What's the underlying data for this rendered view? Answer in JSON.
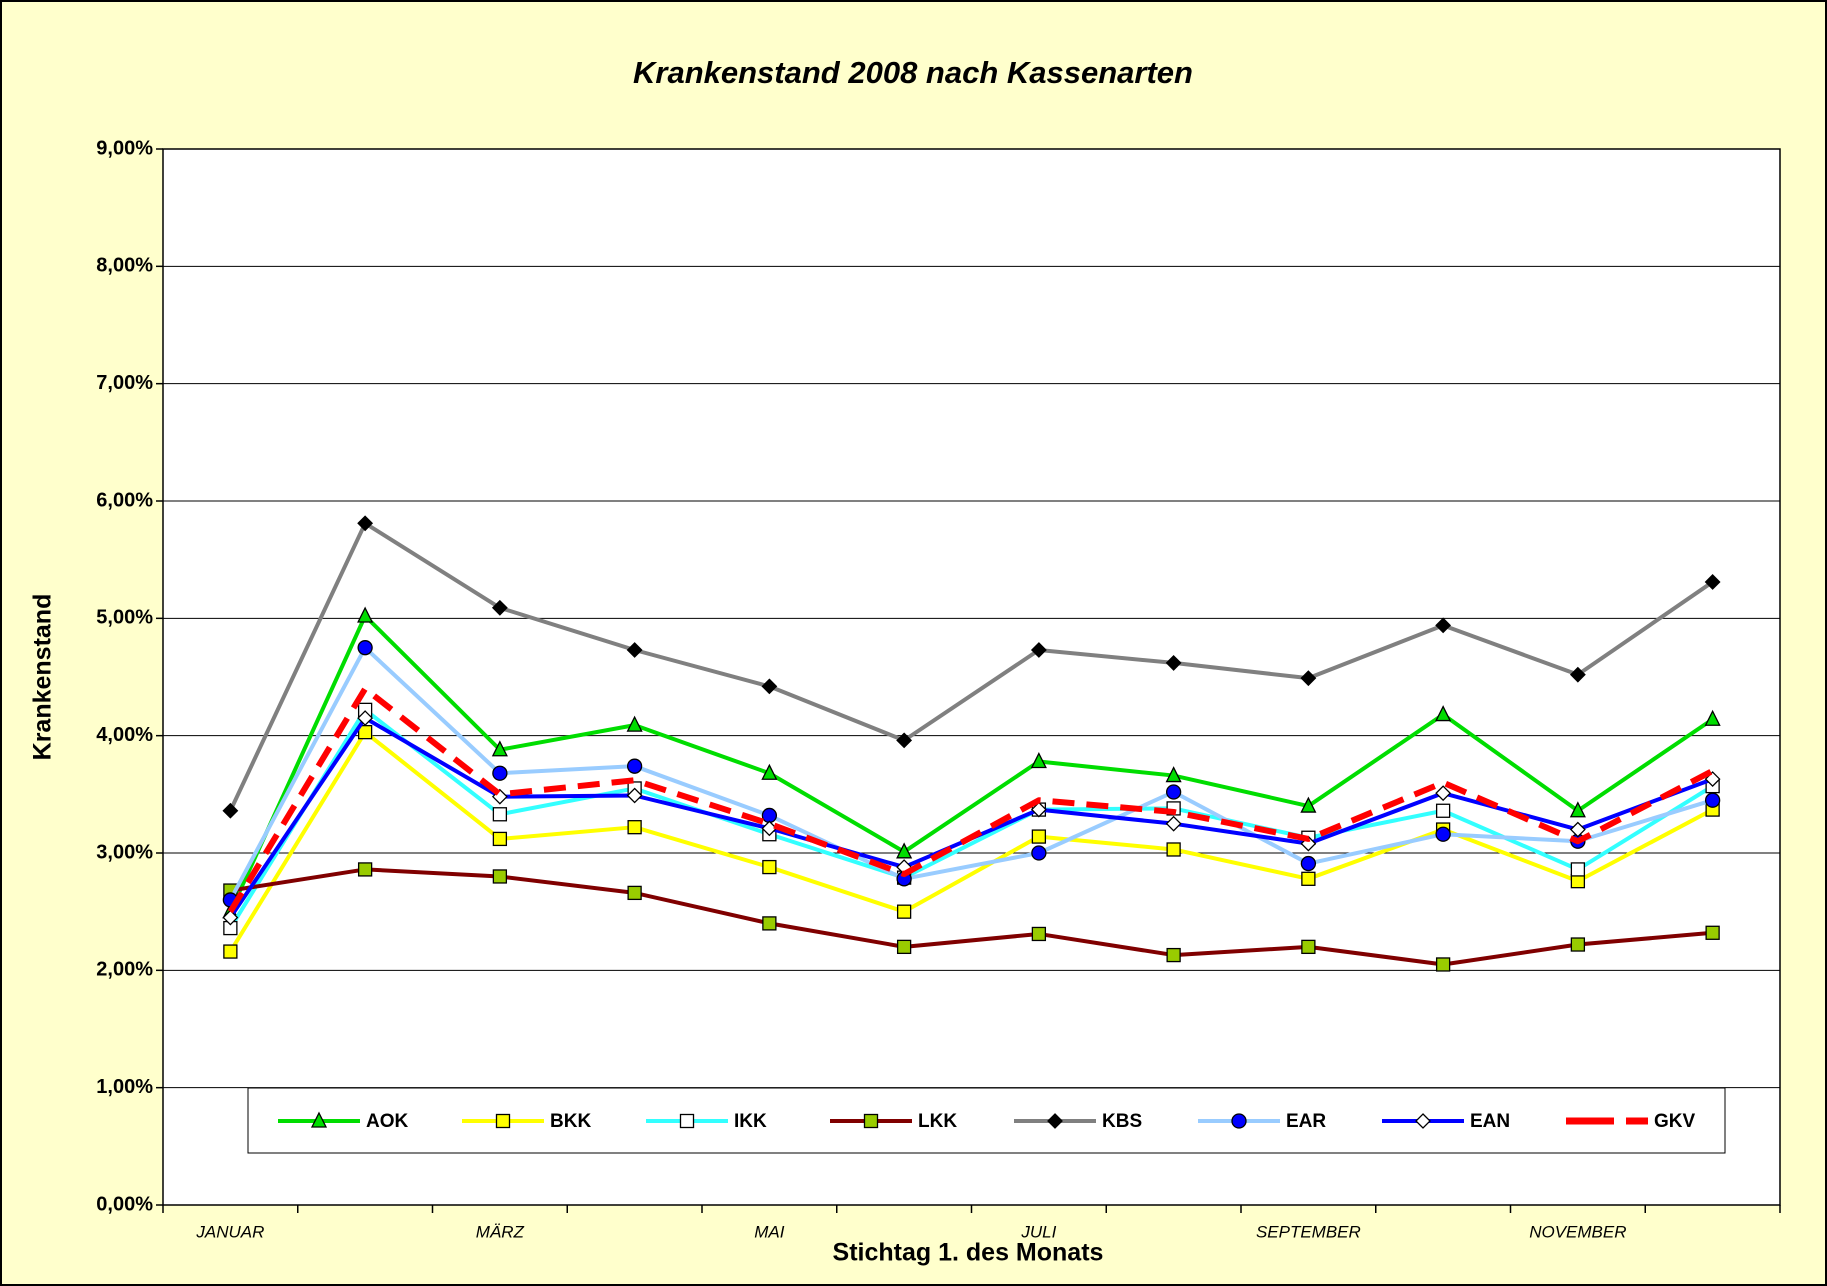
{
  "chart_data": {
    "type": "line",
    "title": "Krankenstand 2008 nach Kassenarten",
    "x_label": "Stichtag 1. des Monats",
    "y_label": "Krankenstand",
    "categories": [
      "JANUAR",
      null,
      "MÄRZ",
      null,
      "MAI",
      null,
      "JULI",
      null,
      "SEPTEMBER",
      null,
      "NOVEMBER",
      null
    ],
    "ylim": [
      0,
      9
    ],
    "yticks": [
      {
        "value": 0,
        "label": "0,00%"
      },
      {
        "value": 1,
        "label": "1,00%"
      },
      {
        "value": 2,
        "label": "2,00%"
      },
      {
        "value": 3,
        "label": "3,00%"
      },
      {
        "value": 4,
        "label": "4,00%"
      },
      {
        "value": 5,
        "label": "5,00%"
      },
      {
        "value": 6,
        "label": "6,00%"
      },
      {
        "value": 7,
        "label": "7,00%"
      },
      {
        "value": 8,
        "label": "8,00%"
      },
      {
        "value": 9,
        "label": "9,00%"
      }
    ],
    "grid": true,
    "legend": "bottom",
    "series": [
      {
        "name": "AOK",
        "color": "#00dd00",
        "marker": "triangle",
        "marker_color": "#00dd00",
        "values": [
          2.5,
          5.02,
          3.88,
          4.09,
          3.68,
          3.01,
          3.78,
          3.66,
          3.4,
          4.18,
          3.36,
          4.14
        ]
      },
      {
        "name": "BKK",
        "color": "#ffff00",
        "marker": "square",
        "marker_color": "#ffff00",
        "values": [
          2.16,
          4.03,
          3.12,
          3.22,
          2.88,
          2.5,
          3.14,
          3.03,
          2.78,
          3.2,
          2.76,
          3.37
        ]
      },
      {
        "name": "IKK",
        "color": "#33ffff",
        "marker": "square",
        "marker_color": "#ffffff",
        "values": [
          2.36,
          4.22,
          3.33,
          3.55,
          3.16,
          2.79,
          3.37,
          3.38,
          3.13,
          3.36,
          2.86,
          3.57
        ]
      },
      {
        "name": "LKK",
        "color": "#800000",
        "marker": "square",
        "marker_color": "#99cc00",
        "values": [
          2.68,
          2.86,
          2.8,
          2.66,
          2.4,
          2.2,
          2.31,
          2.13,
          2.2,
          2.05,
          2.22,
          2.32
        ]
      },
      {
        "name": "KBS",
        "color": "#808080",
        "marker": "diamond",
        "marker_color": "#000000",
        "values": [
          3.36,
          5.81,
          5.09,
          4.73,
          4.42,
          3.96,
          4.73,
          4.62,
          4.49,
          4.94,
          4.52,
          5.31
        ]
      },
      {
        "name": "EAR",
        "color": "#99ccff",
        "marker": "circle",
        "marker_color": "#0000ff",
        "values": [
          2.6,
          4.75,
          3.68,
          3.74,
          3.32,
          2.78,
          3.0,
          3.52,
          2.91,
          3.16,
          3.1,
          3.45
        ]
      },
      {
        "name": "EAN",
        "color": "#0000ff",
        "marker": "diamond",
        "marker_color": "#ffffff",
        "values": [
          2.45,
          4.15,
          3.48,
          3.49,
          3.21,
          2.88,
          3.37,
          3.25,
          3.08,
          3.51,
          3.2,
          3.63
        ]
      },
      {
        "name": "GKV",
        "color": "#ff0000",
        "dashed": true,
        "values": [
          2.5,
          4.4,
          3.5,
          3.62,
          3.25,
          2.82,
          3.45,
          3.35,
          3.12,
          3.6,
          3.1,
          3.7
        ]
      }
    ]
  }
}
